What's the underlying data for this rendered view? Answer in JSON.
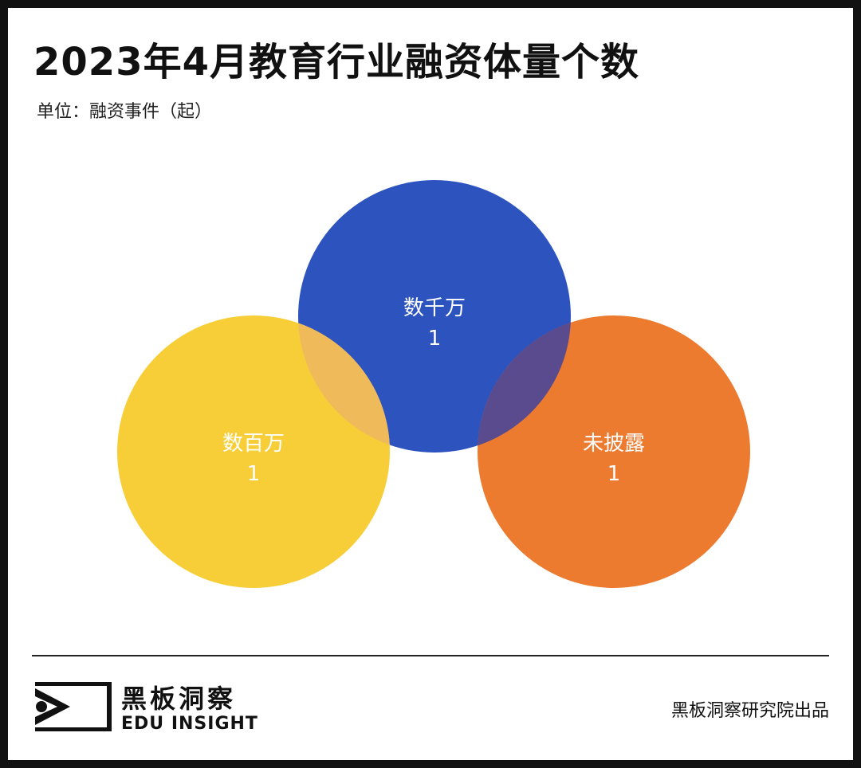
{
  "header": {
    "title": "2023年4月教育行业融资体量个数",
    "subtitle": "单位：融资事件（起）"
  },
  "chart_data": {
    "type": "venn",
    "title": "2023年4月教育行业融资体量个数",
    "unit": "单位：融资事件（起）",
    "sets": [
      {
        "name": "数千万",
        "value": 1,
        "color": "#2d53bf"
      },
      {
        "name": "数百万",
        "value": 1,
        "color": "#f7ce37"
      },
      {
        "name": "未披露",
        "value": 1,
        "color": "#ec7b30"
      }
    ],
    "overlap_colors": {
      "数千万&数百万": "#efba5a",
      "数千万&未披露": "#5a4a8e"
    },
    "label_color": "#ffffff"
  },
  "footer": {
    "brand_cn": "黑板洞察",
    "brand_en": "EDU INSIGHT",
    "credit": "黑板洞察研究院出品",
    "logo_icon": "eye-bracket-icon"
  }
}
